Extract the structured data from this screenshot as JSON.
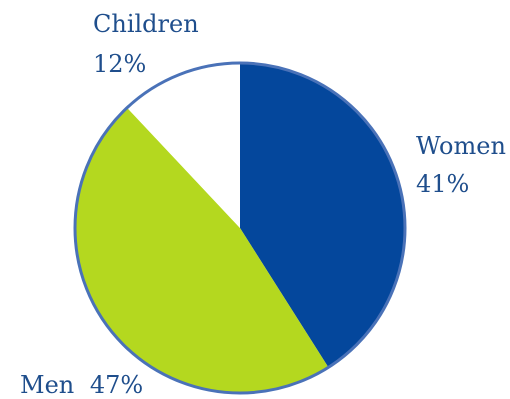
{
  "chart_data": {
    "type": "pie",
    "categories": [
      "Women",
      "Men",
      "Children"
    ],
    "values": [
      41,
      47,
      12
    ],
    "value_labels": [
      "41%",
      "47%",
      "12%"
    ],
    "colors": [
      "#04479c",
      "#b4d81f",
      "#ffffff"
    ],
    "outline_color": "#4a72b8",
    "label_color": "#1f4e8c",
    "start_angle": "12 o'clock",
    "direction": "clockwise",
    "legend": "none"
  }
}
